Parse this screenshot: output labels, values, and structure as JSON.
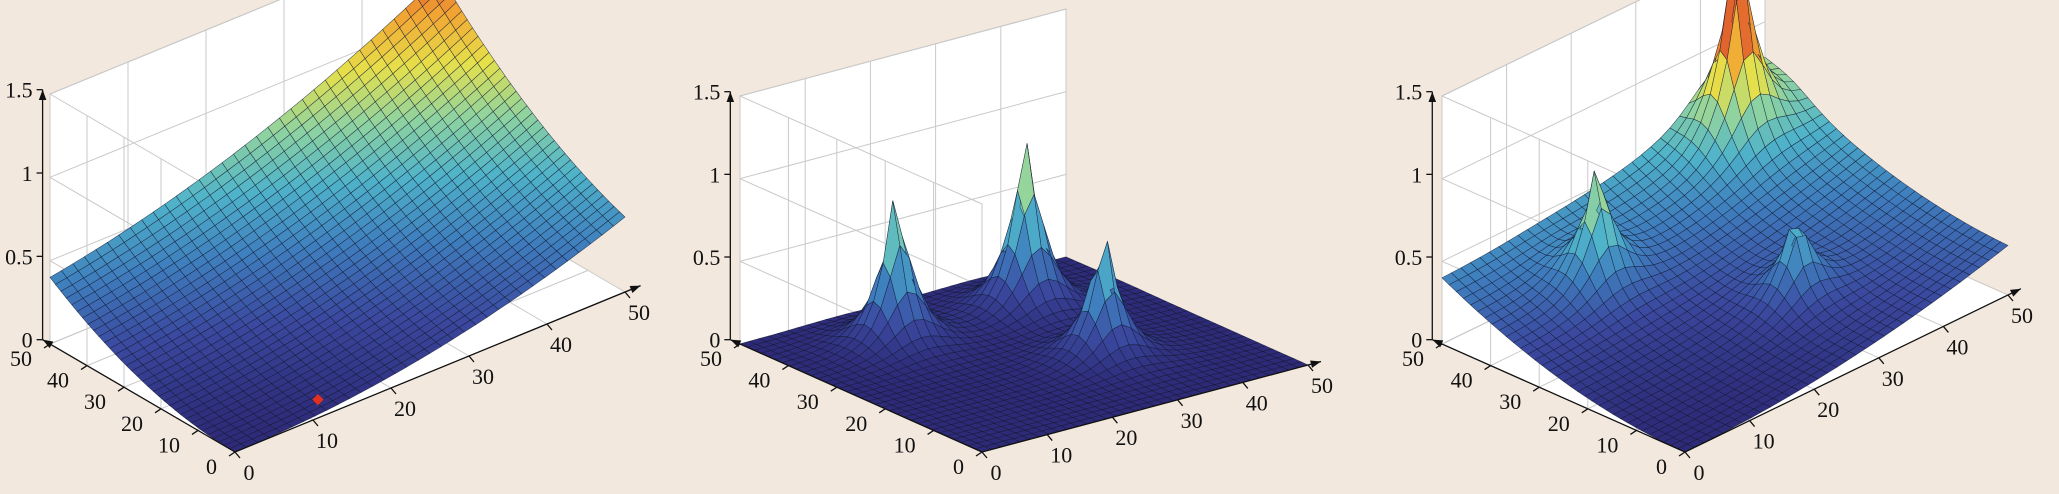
{
  "figure": {
    "background": "#f2e8de",
    "colormap": [
      "#2e2a78",
      "#3b4aa0",
      "#3f7fbe",
      "#4fb3c9",
      "#8fd3a0",
      "#e6e04a",
      "#f2a332",
      "#d8412a"
    ]
  },
  "chart_data": [
    {
      "type": "surface",
      "title": "",
      "xlabel": "",
      "ylabel": "",
      "zlabel": "",
      "xlim": [
        0,
        50
      ],
      "ylim": [
        0,
        50
      ],
      "zlim": [
        0,
        1.5
      ],
      "x_ticks": [
        "0",
        "10",
        "20",
        "30",
        "40",
        "50"
      ],
      "y_ticks": [
        "0",
        "10",
        "20",
        "30",
        "40",
        "50"
      ],
      "z_ticks": [
        "0",
        "0.5",
        "1",
        "1.5"
      ],
      "grid": true,
      "surface": {
        "kind": "quadratic-bowl",
        "value_at_far_corner": 1.25,
        "value_at_y_edge": 0.4,
        "value_at_x_edge": 0.45,
        "min_value": 0.0,
        "min_location": [
          0,
          0
        ]
      },
      "markers": [
        {
          "x": 13,
          "y": 5,
          "z": 0.0,
          "color": "#e03020"
        }
      ]
    },
    {
      "type": "surface",
      "title": "",
      "xlabel": "",
      "ylabel": "",
      "zlabel": "",
      "xlim": [
        0,
        50
      ],
      "ylim": [
        0,
        50
      ],
      "zlim": [
        0,
        1.5
      ],
      "x_ticks": [
        "0",
        "10",
        "20",
        "30",
        "40",
        "50"
      ],
      "y_ticks": [
        "0",
        "10",
        "20",
        "30",
        "40",
        "50"
      ],
      "z_ticks": [
        "0",
        "0.5",
        "1",
        "1.5"
      ],
      "grid": true,
      "surface": {
        "kind": "peaks",
        "base_value": 0.0,
        "peaks": [
          {
            "x": 15,
            "y": 38,
            "height": 1.0
          },
          {
            "x": 35,
            "y": 38,
            "height": 1.15
          },
          {
            "x": 32,
            "y": 18,
            "height": 0.85
          }
        ],
        "peak_cap": "flat"
      },
      "markers": []
    },
    {
      "type": "surface",
      "title": "",
      "xlabel": "",
      "ylabel": "",
      "zlabel": "",
      "xlim": [
        0,
        50
      ],
      "ylim": [
        0,
        50
      ],
      "zlim": [
        0,
        1.5
      ],
      "x_ticks": [
        "0",
        "10",
        "20",
        "30",
        "40",
        "50"
      ],
      "y_ticks": [
        "0",
        "10",
        "20",
        "30",
        "40",
        "50"
      ],
      "z_ticks": [
        "0",
        "0.5",
        "1",
        "1.5"
      ],
      "grid": true,
      "surface": {
        "kind": "bowl-plus-peaks",
        "value_at_far_corner": 0.75,
        "value_at_y_edge": 0.4,
        "value_at_x_edge": 0.3,
        "min_value": 0.0,
        "peaks": [
          {
            "x": 15,
            "y": 38,
            "height": 0.75
          },
          {
            "x": 42,
            "y": 45,
            "height": 1.3
          },
          {
            "x": 30,
            "y": 17,
            "height": 0.55
          }
        ],
        "peak_cap": "flat"
      },
      "markers": []
    }
  ]
}
